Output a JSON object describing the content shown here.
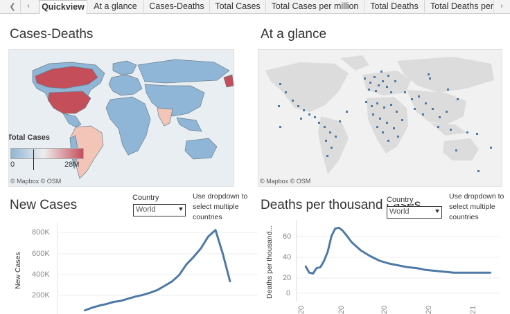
{
  "tabs": [
    "Quickview",
    "At a glance",
    "Cases-Deaths",
    "Total Cases",
    "Total Cases per million",
    "Total Deaths",
    "Total Deaths per"
  ],
  "active_tab": 0,
  "nav": {
    "prev_icon": "chevron-left-icon",
    "next_icon": "chevron-right-icon"
  },
  "cases_deaths": {
    "title": "Cases-Deaths",
    "legend_title": "Total Cases",
    "legend_min": "0",
    "legend_max": "28M",
    "credit": "© Mapbox  © OSM"
  },
  "at_a_glance": {
    "title": "At a glance",
    "credit": "© Mapbox  © OSM"
  },
  "new_cases": {
    "title": "New Cases",
    "country_label": "Country",
    "country_value": "World",
    "hint": "Use dropdown to select multiple countries",
    "ylabel": "New Cases"
  },
  "deaths_per_thousand": {
    "title": "Deaths per thousand cases",
    "country_label": "Country",
    "country_value": "World",
    "hint": "Use dropdown to select multiple countries",
    "ylabel": "Deaths per thousand..."
  },
  "colors": {
    "accent": "#4e79a7",
    "low": "#8fb6d6",
    "high": "#c44e5a",
    "mid": "#f2c5b8"
  },
  "chart_data": [
    {
      "type": "line",
      "title": "New Cases",
      "ylabel": "New Cases",
      "yticks": [
        "200K",
        "400K",
        "600K",
        "800K"
      ],
      "ylim": [
        100000,
        900000
      ],
      "x": [
        0,
        5,
        10,
        15,
        20,
        25,
        30,
        35,
        40,
        45,
        50,
        55,
        60,
        65,
        70,
        75,
        80,
        85,
        90,
        95,
        100
      ],
      "values": [
        120000,
        145000,
        165000,
        180000,
        200000,
        210000,
        230000,
        250000,
        265000,
        285000,
        310000,
        350000,
        390000,
        450000,
        550000,
        620000,
        700000,
        810000,
        870000,
        650000,
        390000
      ]
    },
    {
      "type": "line",
      "title": "Deaths per thousand cases",
      "ylabel": "Deaths per thousand...",
      "yticks": [
        "0",
        "20",
        "40",
        "60"
      ],
      "xticks": [
        "20",
        "20",
        "20",
        "20",
        "21"
      ],
      "ylim": [
        -5,
        75
      ],
      "x": [
        0,
        2,
        4,
        6,
        8,
        10,
        12,
        14,
        16,
        18,
        20,
        22,
        25,
        30,
        35,
        40,
        45,
        50,
        55,
        60,
        65,
        70,
        75,
        80,
        85,
        90,
        95,
        100
      ],
      "values": [
        29,
        22,
        21,
        27,
        28,
        35,
        45,
        62,
        70,
        71,
        68,
        63,
        55,
        46,
        40,
        35,
        32,
        30,
        28,
        27,
        25,
        24,
        23,
        22,
        22,
        22,
        22,
        22
      ]
    }
  ]
}
